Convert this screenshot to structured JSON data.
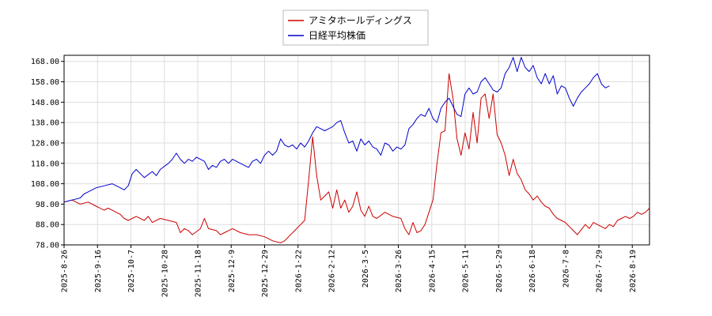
{
  "chart_data": {
    "type": "line",
    "title": "",
    "xlabel": "",
    "ylabel": "",
    "ylim": [
      78,
      171
    ],
    "y_ticks": [
      "78.00",
      "88.00",
      "98.00",
      "108.00",
      "118.00",
      "128.00",
      "138.00",
      "148.00",
      "158.00",
      "168.00"
    ],
    "x_ticks": [
      "2025-8-26",
      "2025-9-16",
      "2025-10-7",
      "2025-10-28",
      "2025-11-18",
      "2025-12-9",
      "2025-12-29",
      "2026-1-22",
      "2026-2-12",
      "2026-3-5",
      "2026-3-26",
      "2026-4-15",
      "2026-5-11",
      "2026-5-29",
      "2026-6-18",
      "2026-7-8",
      "2026-7-29",
      "2026-8-19"
    ],
    "grid": true,
    "legend_position": "top-center",
    "series": [
      {
        "name": "アミタホールディングス",
        "color": "#cc0000",
        "points": [
          [
            0,
            99
          ],
          [
            2,
            100
          ],
          [
            4,
            98
          ],
          [
            6,
            99
          ],
          [
            8,
            97
          ],
          [
            10,
            95
          ],
          [
            11,
            96
          ],
          [
            12,
            95
          ],
          [
            14,
            93
          ],
          [
            15,
            91
          ],
          [
            16,
            90
          ],
          [
            18,
            92
          ],
          [
            20,
            90
          ],
          [
            21,
            92
          ],
          [
            22,
            89
          ],
          [
            24,
            91
          ],
          [
            26,
            90
          ],
          [
            28,
            89
          ],
          [
            29,
            84
          ],
          [
            30,
            86
          ],
          [
            31,
            85
          ],
          [
            32,
            83
          ],
          [
            34,
            86
          ],
          [
            35,
            91
          ],
          [
            36,
            86
          ],
          [
            38,
            85
          ],
          [
            39,
            83
          ],
          [
            40,
            84
          ],
          [
            42,
            86
          ],
          [
            44,
            84
          ],
          [
            46,
            83
          ],
          [
            48,
            83
          ],
          [
            50,
            82
          ],
          [
            52,
            80
          ],
          [
            54,
            79
          ],
          [
            55,
            80
          ],
          [
            56,
            82
          ],
          [
            58,
            86
          ],
          [
            60,
            90
          ],
          [
            61,
            110
          ],
          [
            62,
            131
          ],
          [
            63,
            112
          ],
          [
            64,
            100
          ],
          [
            65,
            102
          ],
          [
            66,
            104
          ],
          [
            67,
            96
          ],
          [
            68,
            105
          ],
          [
            69,
            96
          ],
          [
            70,
            100
          ],
          [
            71,
            94
          ],
          [
            72,
            97
          ],
          [
            73,
            104
          ],
          [
            74,
            95
          ],
          [
            75,
            92
          ],
          [
            76,
            97
          ],
          [
            77,
            92
          ],
          [
            78,
            91
          ],
          [
            80,
            94
          ],
          [
            82,
            92
          ],
          [
            84,
            91
          ],
          [
            85,
            86
          ],
          [
            86,
            83
          ],
          [
            87,
            89
          ],
          [
            88,
            84
          ],
          [
            89,
            85
          ],
          [
            90,
            88
          ],
          [
            91,
            94
          ],
          [
            92,
            100
          ],
          [
            93,
            118
          ],
          [
            94,
            133
          ],
          [
            95,
            134
          ],
          [
            96,
            162
          ],
          [
            97,
            150
          ],
          [
            98,
            130
          ],
          [
            99,
            122
          ],
          [
            100,
            133
          ],
          [
            101,
            125
          ],
          [
            102,
            143
          ],
          [
            103,
            128
          ],
          [
            104,
            150
          ],
          [
            105,
            152
          ],
          [
            106,
            140
          ],
          [
            107,
            152
          ],
          [
            108,
            132
          ],
          [
            109,
            128
          ],
          [
            110,
            122
          ],
          [
            111,
            112
          ],
          [
            112,
            120
          ],
          [
            113,
            113
          ],
          [
            114,
            110
          ],
          [
            115,
            105
          ],
          [
            116,
            103
          ],
          [
            117,
            100
          ],
          [
            118,
            102
          ],
          [
            119,
            99
          ],
          [
            120,
            97
          ],
          [
            121,
            96
          ],
          [
            122,
            93
          ],
          [
            123,
            91
          ],
          [
            124,
            90
          ],
          [
            125,
            89
          ],
          [
            126,
            87
          ],
          [
            127,
            85
          ],
          [
            128,
            83
          ],
          [
            130,
            88
          ],
          [
            131,
            86
          ],
          [
            132,
            89
          ],
          [
            133,
            88
          ],
          [
            134,
            87
          ],
          [
            135,
            86
          ],
          [
            136,
            88
          ],
          [
            137,
            87
          ],
          [
            138,
            90
          ],
          [
            139,
            91
          ],
          [
            140,
            92
          ],
          [
            141,
            91
          ],
          [
            142,
            92
          ],
          [
            143,
            94
          ],
          [
            144,
            93
          ],
          [
            145,
            94
          ],
          [
            146,
            96
          ]
        ]
      },
      {
        "name": "日経平均株価",
        "color": "#0000cc",
        "points": [
          [
            0,
            99
          ],
          [
            2,
            100
          ],
          [
            4,
            101
          ],
          [
            5,
            103
          ],
          [
            6,
            104
          ],
          [
            8,
            106
          ],
          [
            10,
            107
          ],
          [
            12,
            108
          ],
          [
            14,
            106
          ],
          [
            15,
            105
          ],
          [
            16,
            107
          ],
          [
            17,
            113
          ],
          [
            18,
            115
          ],
          [
            20,
            111
          ],
          [
            22,
            114
          ],
          [
            23,
            112
          ],
          [
            24,
            115
          ],
          [
            26,
            118
          ],
          [
            27,
            120
          ],
          [
            28,
            123
          ],
          [
            29,
            120
          ],
          [
            30,
            118
          ],
          [
            31,
            120
          ],
          [
            32,
            119
          ],
          [
            33,
            121
          ],
          [
            34,
            120
          ],
          [
            35,
            119
          ],
          [
            36,
            115
          ],
          [
            37,
            117
          ],
          [
            38,
            116
          ],
          [
            39,
            119
          ],
          [
            40,
            120
          ],
          [
            41,
            118
          ],
          [
            42,
            120
          ],
          [
            43,
            119
          ],
          [
            44,
            118
          ],
          [
            45,
            117
          ],
          [
            46,
            116
          ],
          [
            47,
            119
          ],
          [
            48,
            120
          ],
          [
            49,
            118
          ],
          [
            50,
            122
          ],
          [
            51,
            124
          ],
          [
            52,
            122
          ],
          [
            53,
            124
          ],
          [
            54,
            130
          ],
          [
            55,
            127
          ],
          [
            56,
            126
          ],
          [
            57,
            127
          ],
          [
            58,
            125
          ],
          [
            59,
            128
          ],
          [
            60,
            126
          ],
          [
            61,
            129
          ],
          [
            62,
            133
          ],
          [
            63,
            136
          ],
          [
            64,
            135
          ],
          [
            65,
            134
          ],
          [
            66,
            135
          ],
          [
            67,
            136
          ],
          [
            68,
            138
          ],
          [
            69,
            139
          ],
          [
            70,
            133
          ],
          [
            71,
            128
          ],
          [
            72,
            129
          ],
          [
            73,
            124
          ],
          [
            74,
            130
          ],
          [
            75,
            127
          ],
          [
            76,
            129
          ],
          [
            77,
            126
          ],
          [
            78,
            125
          ],
          [
            79,
            122
          ],
          [
            80,
            128
          ],
          [
            81,
            127
          ],
          [
            82,
            124
          ],
          [
            83,
            126
          ],
          [
            84,
            125
          ],
          [
            85,
            127
          ],
          [
            86,
            135
          ],
          [
            87,
            137
          ],
          [
            88,
            140
          ],
          [
            89,
            142
          ],
          [
            90,
            141
          ],
          [
            91,
            145
          ],
          [
            92,
            140
          ],
          [
            93,
            138
          ],
          [
            94,
            145
          ],
          [
            95,
            148
          ],
          [
            96,
            150
          ],
          [
            97,
            146
          ],
          [
            98,
            142
          ],
          [
            99,
            141
          ],
          [
            100,
            152
          ],
          [
            101,
            155
          ],
          [
            102,
            152
          ],
          [
            103,
            153
          ],
          [
            104,
            158
          ],
          [
            105,
            160
          ],
          [
            106,
            157
          ],
          [
            107,
            154
          ],
          [
            108,
            153
          ],
          [
            109,
            155
          ],
          [
            110,
            162
          ],
          [
            111,
            165
          ],
          [
            112,
            170
          ],
          [
            113,
            163
          ],
          [
            114,
            170
          ],
          [
            115,
            165
          ],
          [
            116,
            163
          ],
          [
            117,
            166
          ],
          [
            118,
            160
          ],
          [
            119,
            157
          ],
          [
            120,
            162
          ],
          [
            121,
            157
          ],
          [
            122,
            161
          ],
          [
            123,
            152
          ],
          [
            124,
            156
          ],
          [
            125,
            155
          ],
          [
            126,
            150
          ],
          [
            127,
            146
          ],
          [
            128,
            150
          ],
          [
            129,
            153
          ],
          [
            130,
            155
          ],
          [
            131,
            157
          ],
          [
            132,
            160
          ],
          [
            133,
            162
          ],
          [
            134,
            157
          ],
          [
            135,
            155
          ],
          [
            136,
            156
          ]
        ]
      }
    ]
  }
}
